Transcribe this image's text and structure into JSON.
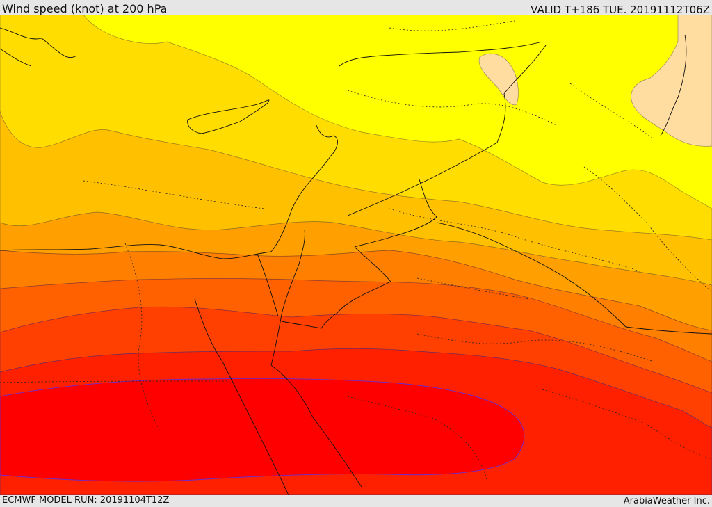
{
  "header": {
    "title": "Wind speed (knot) at 200 hPa",
    "valid_time": "VALID T+186 TUE. 20191112T06Z"
  },
  "footer": {
    "model_run": "ECMWF MODEL RUN: 20191104T12Z",
    "credit": "ArabiaWeather Inc."
  },
  "map": {
    "shading_colors": [
      "#ffff00",
      "#ffdd00",
      "#ffc000",
      "#ffa000",
      "#ff7f00",
      "#ff6000",
      "#ff4000",
      "#ff0000",
      "#ff2000",
      "#ffdca0"
    ]
  }
}
